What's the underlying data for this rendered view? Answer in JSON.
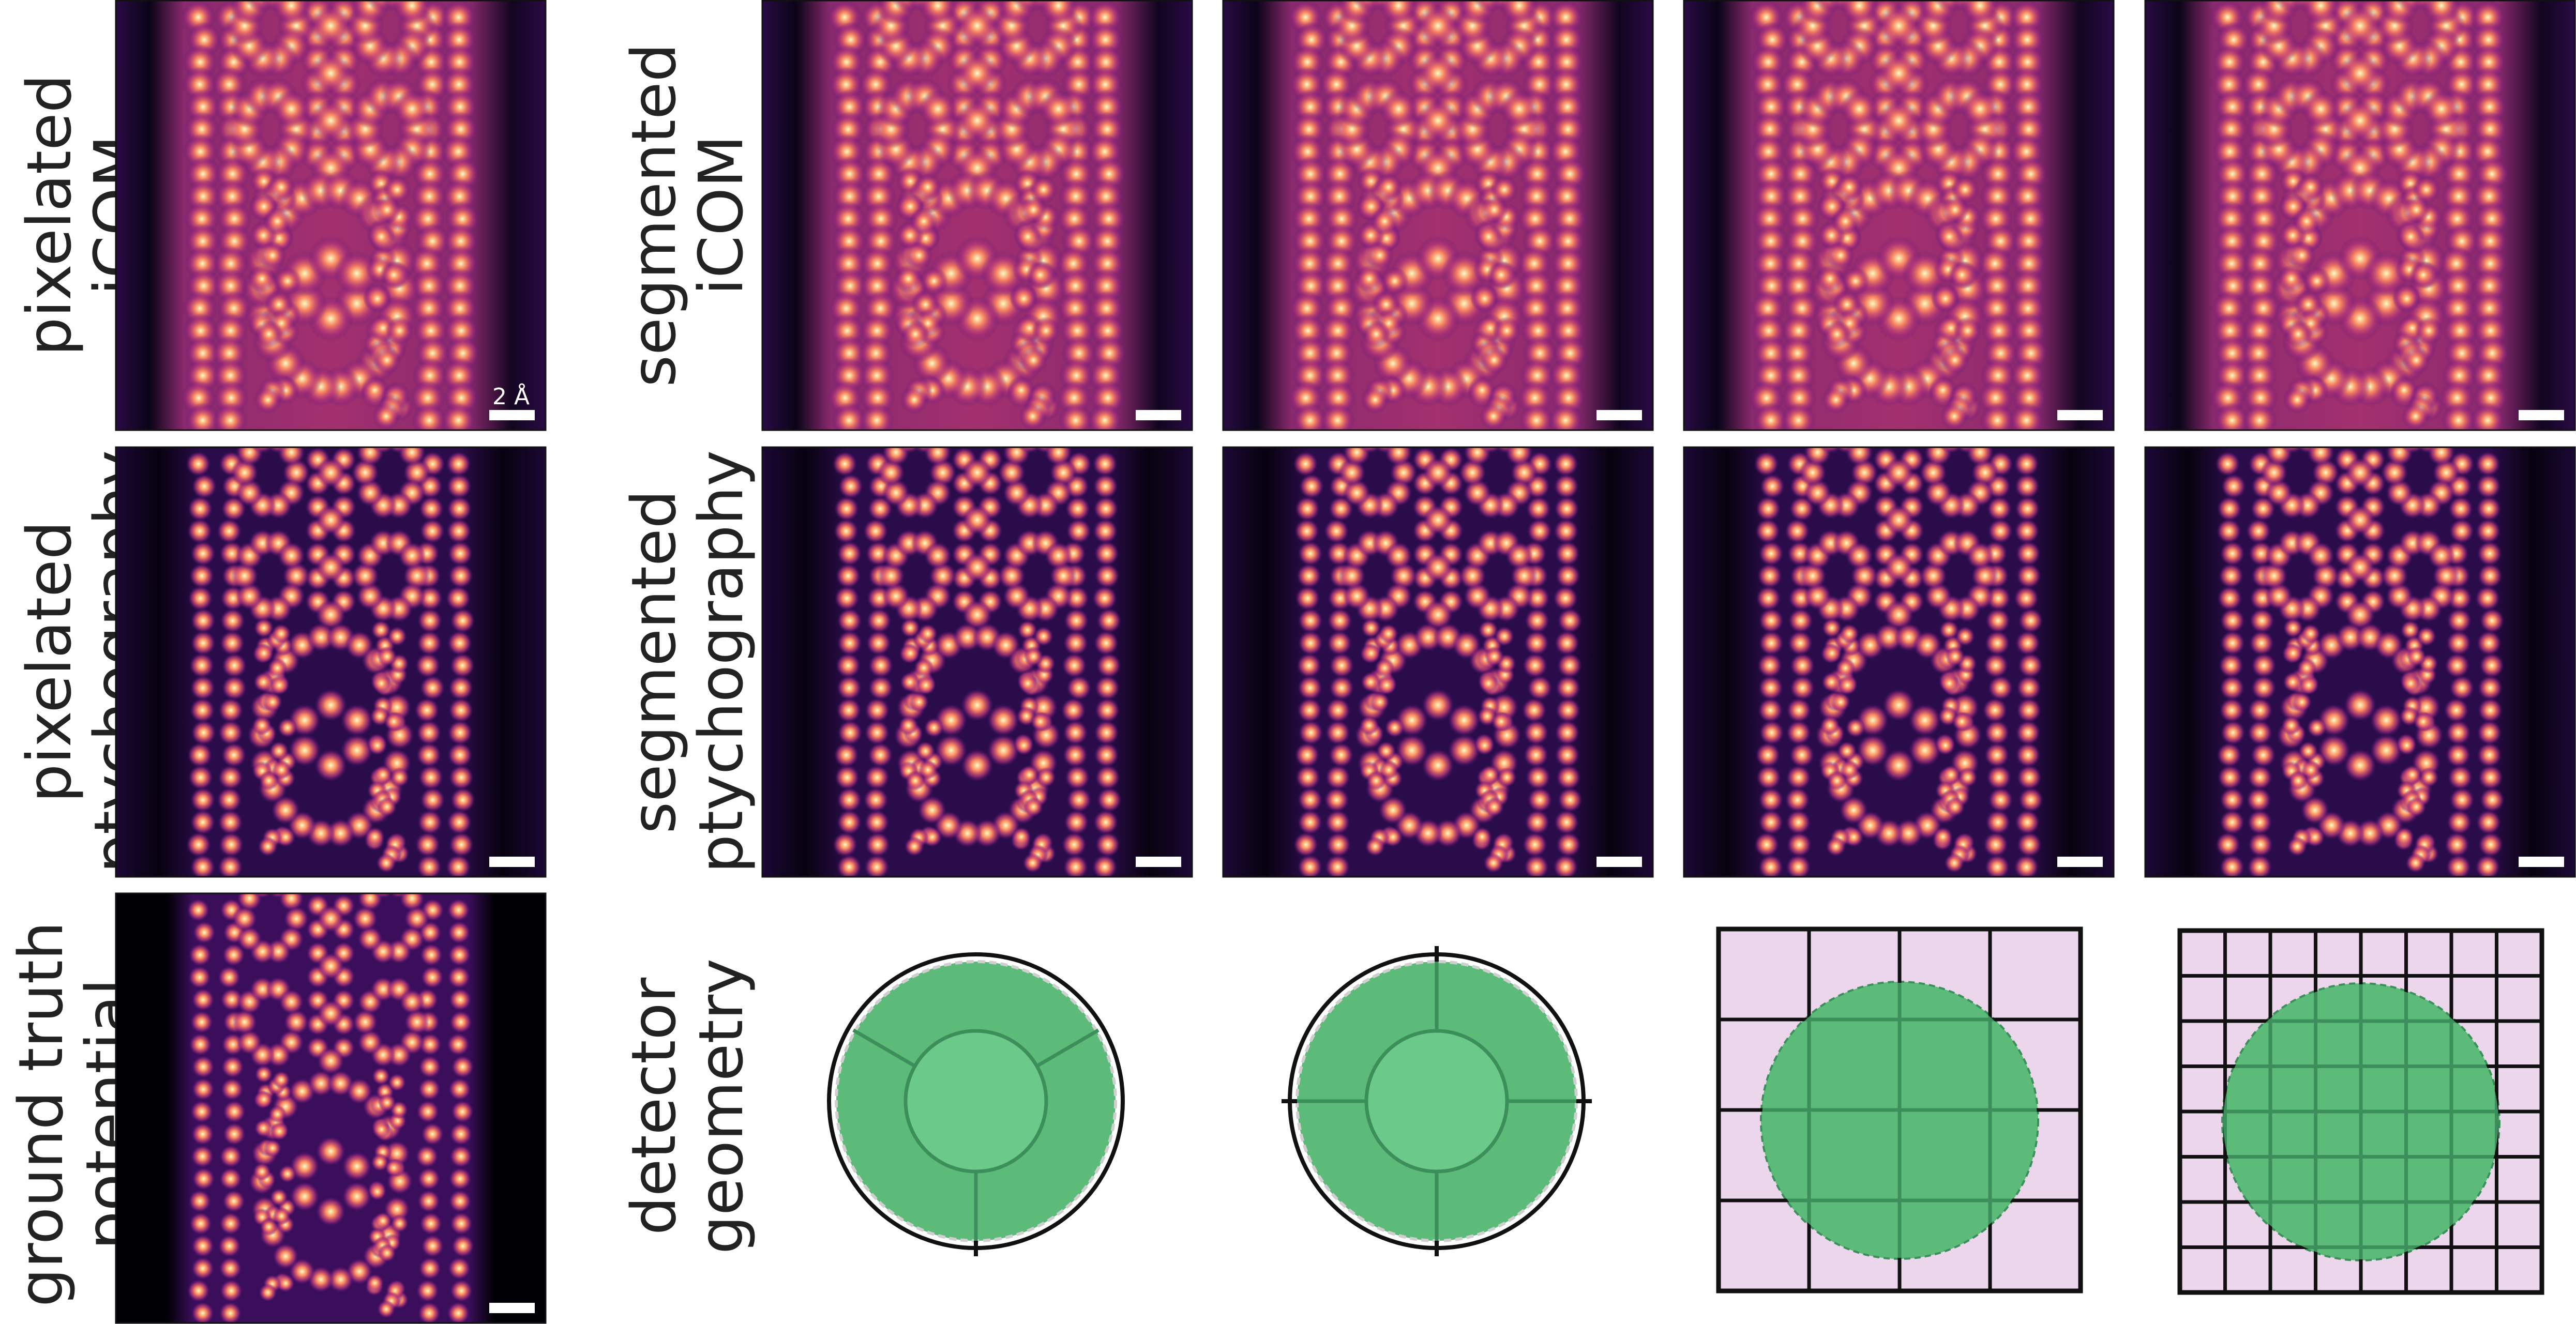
{
  "row_labels": {
    "pixelated_icom": [
      "pixelated",
      "iCOM"
    ],
    "segmented_icom": [
      "segmented",
      "iCOM"
    ],
    "pixelated_ptychography": [
      "pixelated",
      "ptychography"
    ],
    "segmented_ptychography": [
      "segmented",
      "ptychography"
    ],
    "ground_truth": [
      "ground truth",
      "potential"
    ],
    "detector_geometry": [
      "detector",
      "geometry"
    ]
  },
  "scale_bar_label": "2 Å",
  "colors": {
    "magma_dark": "#000004",
    "magma_purple": "#51127c",
    "magma_red": "#b73779",
    "magma_orange": "#fc8961",
    "magma_yellow": "#fcfdbf",
    "detector_green": "#5dbb7a",
    "detector_green_edge": "#3c8f5a",
    "detector_pink": "#ecd6ec"
  },
  "detectors": [
    {
      "type": "annular",
      "inner_segments": 1,
      "outer_segments": 3
    },
    {
      "type": "annular",
      "inner_segments": 1,
      "outer_segments": 4
    },
    {
      "type": "grid",
      "divisions": 4
    },
    {
      "type": "grid",
      "divisions": 8
    }
  ]
}
